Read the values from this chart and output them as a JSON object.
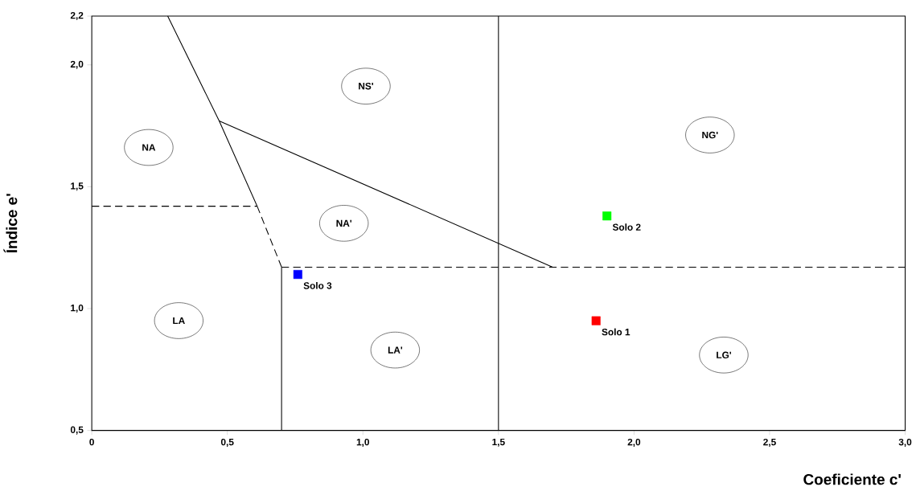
{
  "chart_data": {
    "type": "scatter",
    "xlabel": "Coeficiente c'",
    "ylabel": "Índice e'",
    "xlim": [
      0,
      3.0
    ],
    "ylim": [
      0.5,
      2.2
    ],
    "xticks": [
      0,
      {
        "value": 0.5,
        "label": "0,5"
      },
      {
        "value": 1.0,
        "label": "1,0"
      },
      {
        "value": 1.5,
        "label": "1,5"
      },
      {
        "value": 2.0,
        "label": "2,0"
      },
      {
        "value": 2.5,
        "label": "2,5"
      },
      {
        "value": 3.0,
        "label": "3,0"
      }
    ],
    "yticks": [
      {
        "value": 0.5,
        "label": "0,5"
      },
      {
        "value": 1.0,
        "label": "1,0"
      },
      {
        "value": 1.5,
        "label": "1,5"
      },
      {
        "value": 2.0,
        "label": "2,0"
      },
      {
        "value": 2.2,
        "label": "2,2"
      }
    ],
    "series": [
      {
        "type": "line",
        "color": "#000000",
        "line_style": "solid",
        "x": [
          0.28,
          0.47,
          0.61
        ],
        "values": [
          2.2,
          1.77,
          1.42
        ]
      },
      {
        "type": "line",
        "color": "#000000",
        "line_style": "dashed",
        "x": [
          0.61,
          0.7
        ],
        "values": [
          1.42,
          1.17
        ]
      },
      {
        "type": "line",
        "color": "#000000",
        "line_style": "dashed",
        "x": [
          0,
          0.61
        ],
        "values": [
          1.42,
          1.42
        ]
      },
      {
        "type": "line",
        "color": "#000000",
        "line_style": "solid",
        "x": [
          0.47,
          1.7
        ],
        "values": [
          1.77,
          1.17
        ]
      },
      {
        "type": "line",
        "color": "#000000",
        "line_style": "dashed",
        "x": [
          0.7,
          3.0
        ],
        "values": [
          1.17,
          1.17
        ]
      },
      {
        "type": "line",
        "color": "#000000",
        "line_style": "solid",
        "x": [
          0.7,
          0.7
        ],
        "values": [
          0.5,
          1.17
        ]
      },
      {
        "type": "line",
        "color": "#000000",
        "line_style": "solid",
        "x": [
          1.5,
          1.5
        ],
        "values": [
          0.5,
          2.2
        ]
      },
      {
        "name": "Solo 1",
        "color": "#ff0000",
        "marker": "square",
        "x": [
          1.86
        ],
        "values": [
          0.95
        ]
      },
      {
        "name": "Solo 2",
        "color": "#00ff00",
        "marker": "square",
        "x": [
          1.9
        ],
        "values": [
          1.38
        ]
      },
      {
        "name": "Solo 3",
        "color": "#0000ff",
        "marker": "square",
        "x": [
          0.76
        ],
        "values": [
          1.14
        ]
      }
    ],
    "annotations": [
      "NS'",
      "NA",
      "NG'",
      "NA'",
      "LA",
      "LA'",
      "LG'"
    ]
  }
}
